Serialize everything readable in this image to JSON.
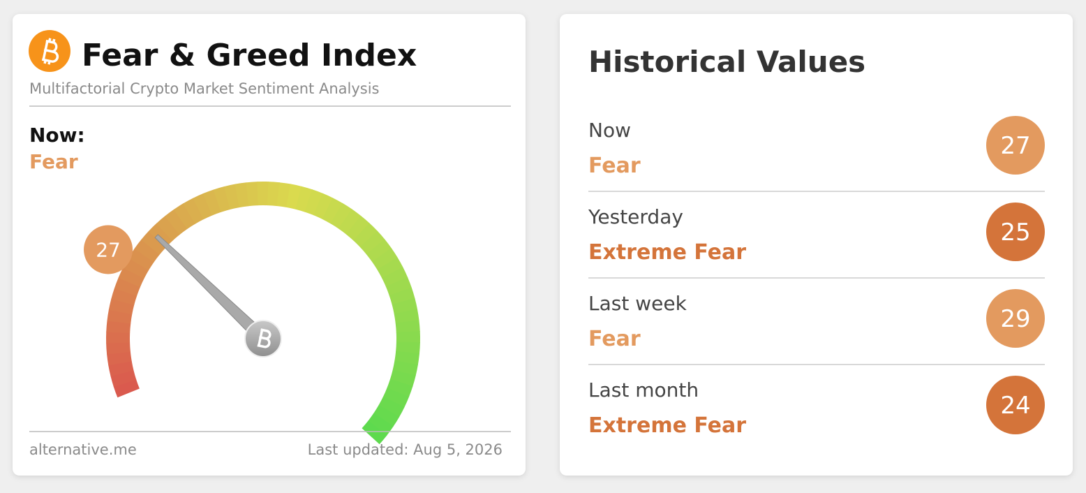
{
  "widget": {
    "title": "Fear & Greed Index",
    "subtitle": "Multifactorial Crypto Market Sentiment Analysis",
    "now_label": "Now:",
    "classification": "Fear",
    "color": "#e39a5f",
    "value": 27,
    "gauge_range": [
      0,
      100
    ],
    "source": "alternative.me",
    "last_updated": "Last updated: Aug 5, 2026"
  },
  "historical": {
    "title": "Historical Values",
    "rows": [
      {
        "period": "Now",
        "classification": "Fear",
        "value": 27,
        "color": "#e39a5f"
      },
      {
        "period": "Yesterday",
        "classification": "Extreme Fear",
        "value": 25,
        "color": "#d4743a"
      },
      {
        "period": "Last week",
        "classification": "Fear",
        "value": 29,
        "color": "#e39a5f"
      },
      {
        "period": "Last month",
        "classification": "Extreme Fear",
        "value": 24,
        "color": "#d4743a"
      }
    ]
  }
}
